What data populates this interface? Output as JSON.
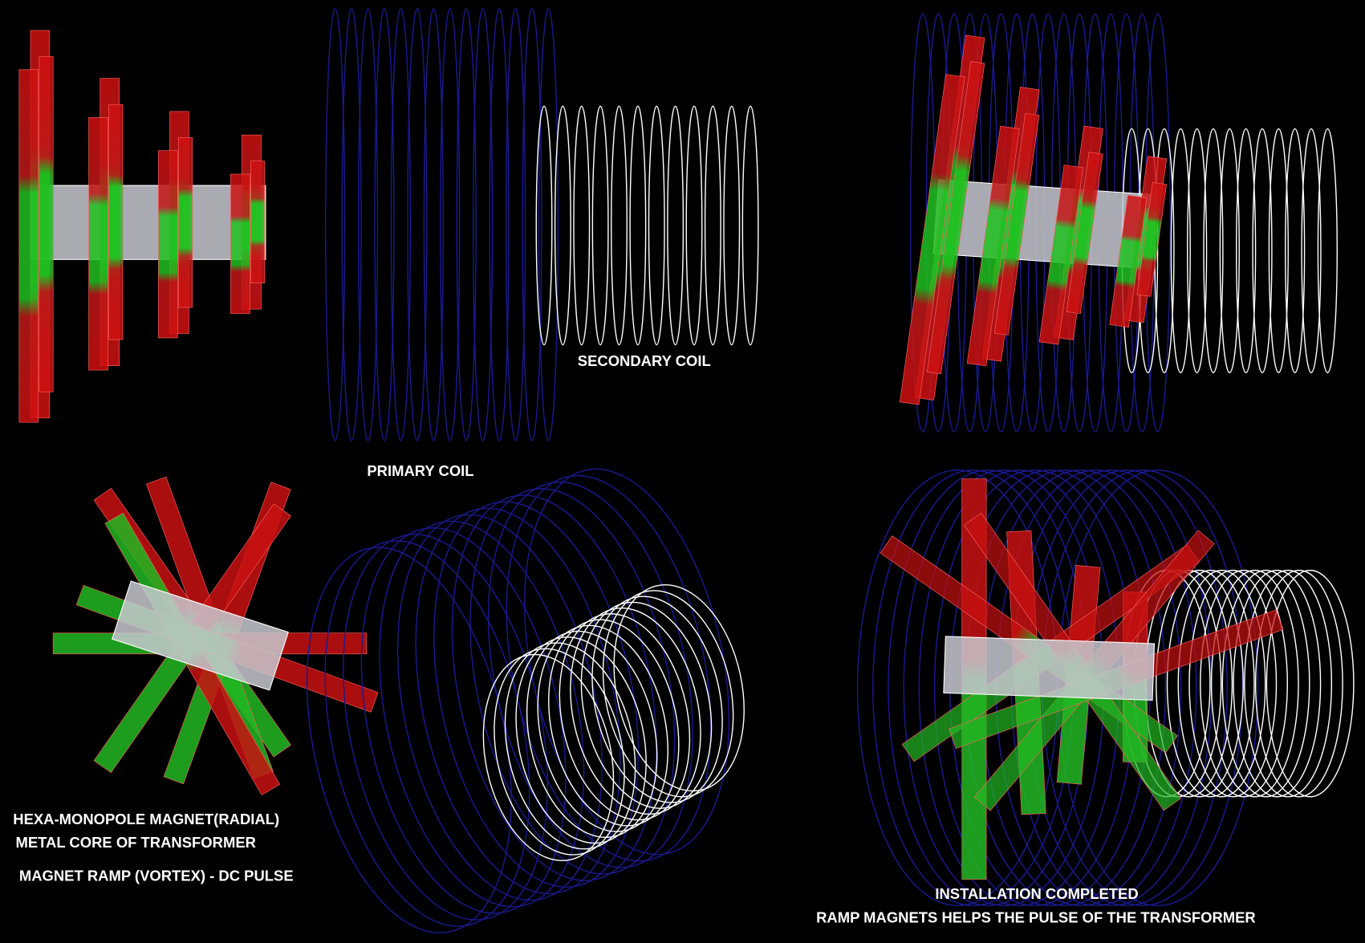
{
  "labels": {
    "secondary_coil": "SECONDARY COIL",
    "primary_coil": "PRIMARY COIL",
    "hexa_monopole": "HEXA-MONOPOLE MAGNET(RADIAL)",
    "metal_core": "METAL CORE OF TRANSFORMER",
    "magnet_ramp": "MAGNET RAMP (VORTEX) - DC PULSE",
    "installation": "INSTALLATION COMPLETED",
    "ramp_helps": "RAMP MAGNETS HELPS THE PULSE OF THE TRANSFORMER"
  }
}
